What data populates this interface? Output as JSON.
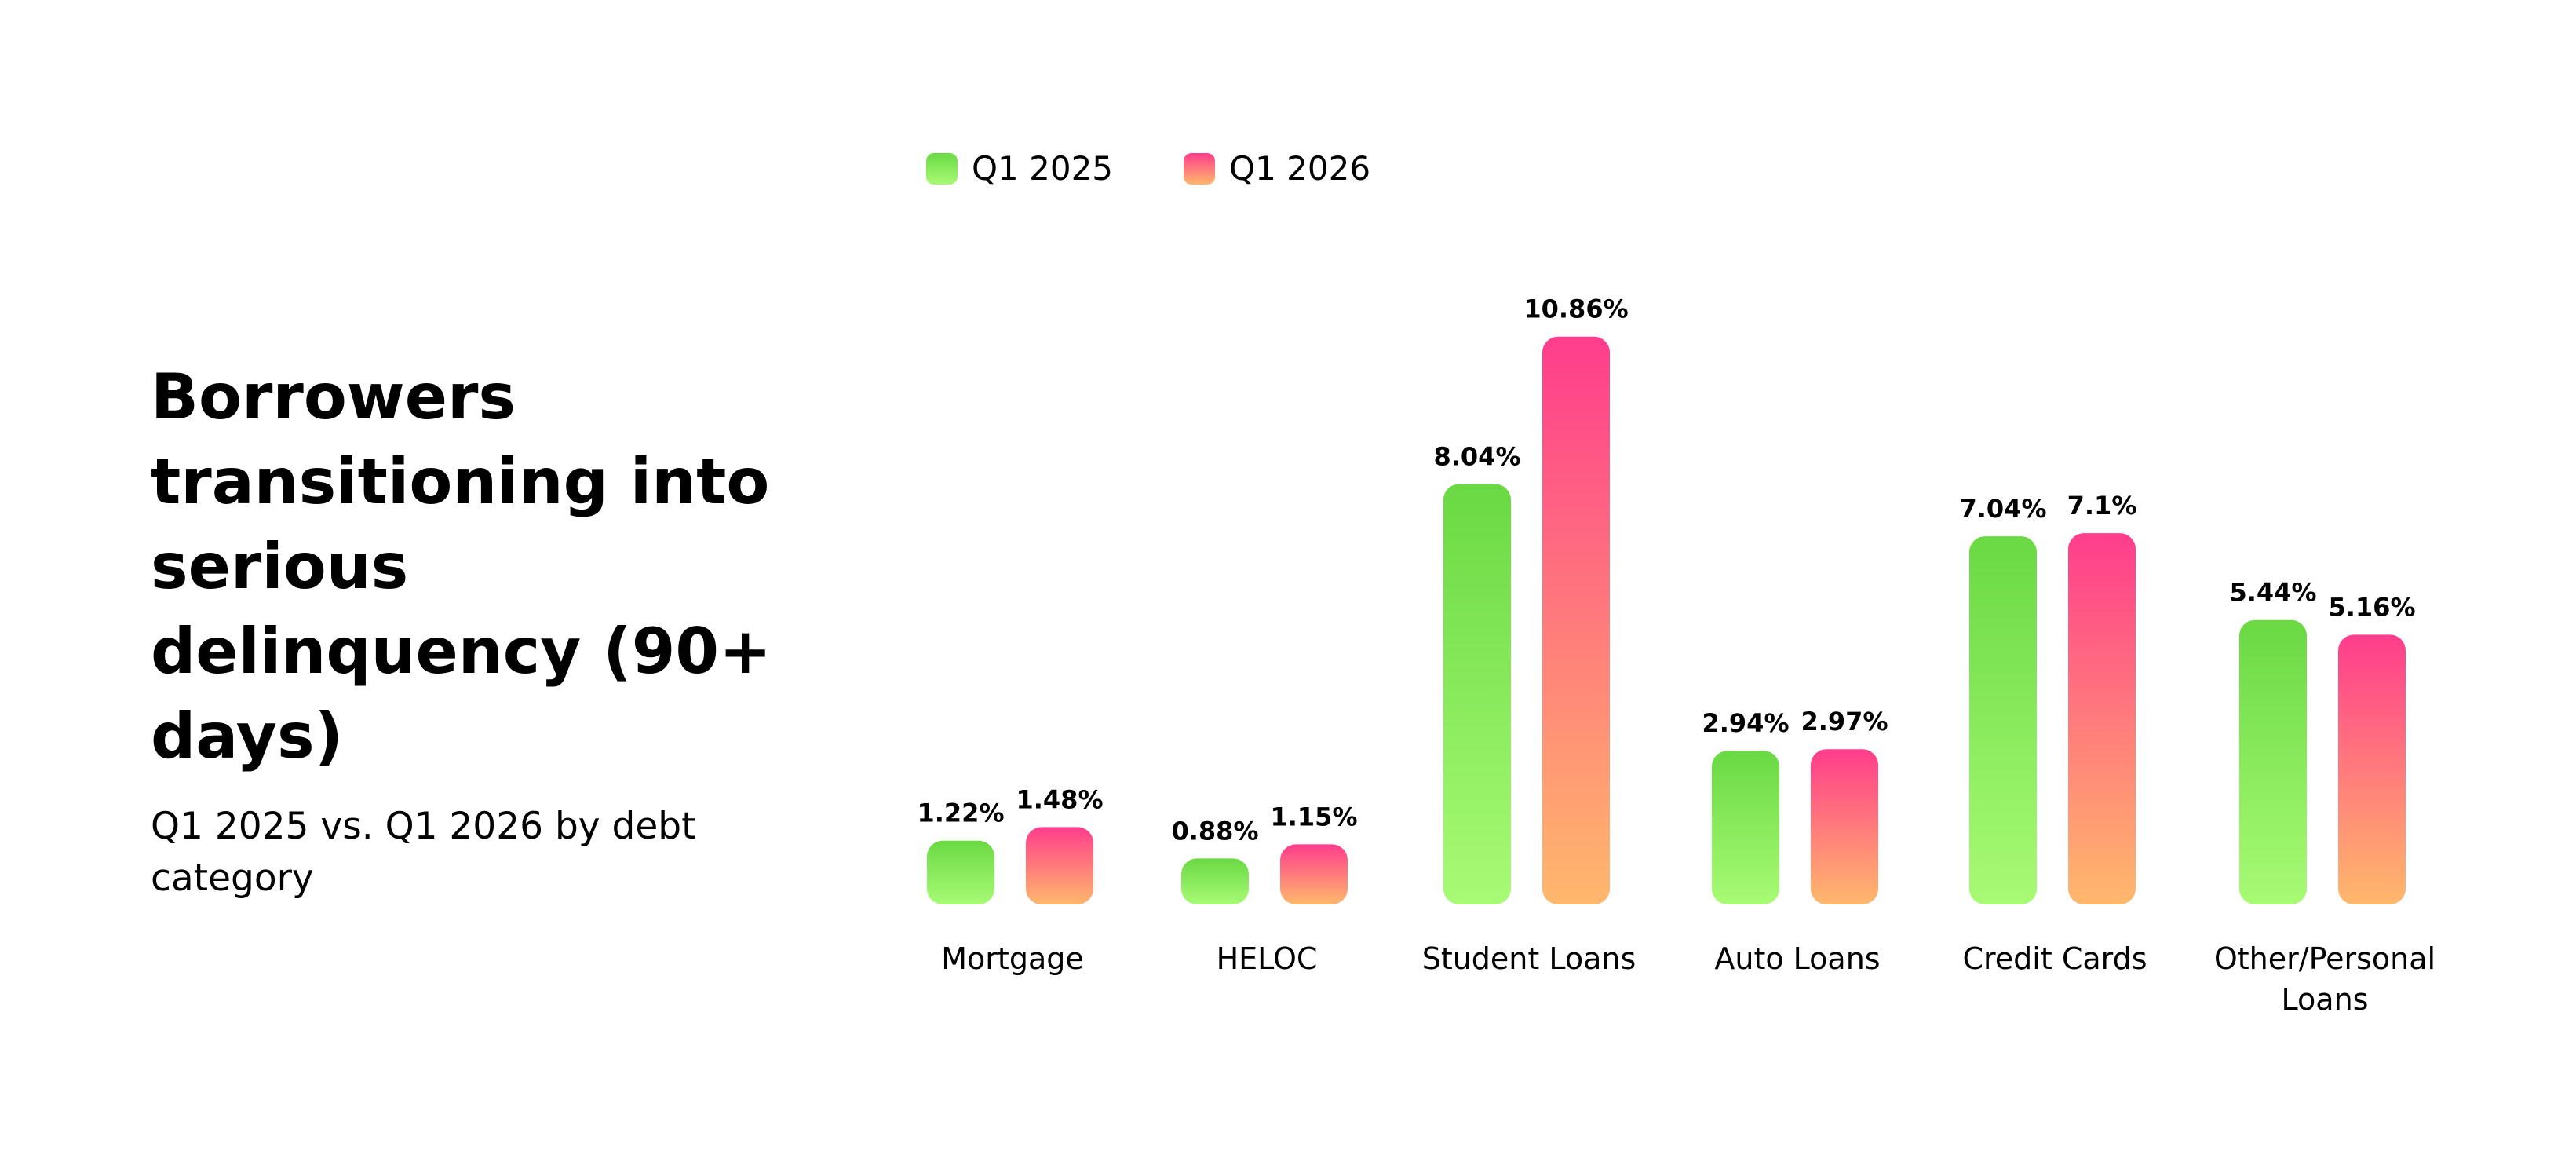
{
  "title": "Borrowers transitioning into serious delinquency (90+ days)",
  "subtitle": "Q1 2025 vs. Q1 2026 by debt category",
  "colors": {
    "q1_2025_top": "#6ad943",
    "q1_2025_bottom": "#a8fb75",
    "q1_2026_top": "#ff3d8c",
    "q1_2026_bottom": "#ffb86c"
  },
  "chart_data": {
    "type": "bar",
    "categories": [
      "Mortgage",
      "HELOC",
      "Student Loans",
      "Auto Loans",
      "Credit Cards",
      "Other/Personal Loans"
    ],
    "series": [
      {
        "name": "Q1 2025",
        "values": [
          1.22,
          0.88,
          8.04,
          2.94,
          7.04,
          5.44
        ],
        "labels": [
          "1.22%",
          "0.88%",
          "8.04%",
          "2.94%",
          "7.04%",
          "5.44%"
        ]
      },
      {
        "name": "Q1 2026",
        "values": [
          1.48,
          1.15,
          10.86,
          2.97,
          7.1,
          5.16
        ],
        "labels": [
          "1.48%",
          "1.15%",
          "10.86%",
          "2.97%",
          "7.1%",
          "5.16%"
        ]
      }
    ],
    "legend": "top-left",
    "grid": false
  }
}
